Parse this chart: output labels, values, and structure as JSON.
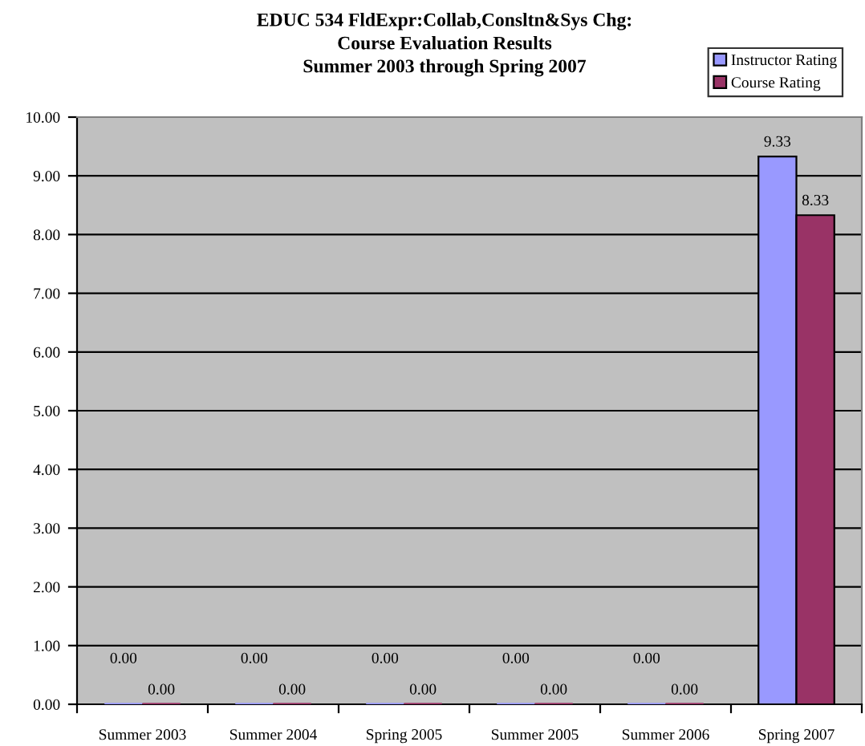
{
  "chart_data": {
    "type": "bar",
    "title": "EDUC 534 FldExpr:Collab,Consltn&Sys Chg:\nCourse Evaluation Results\nSummer 2003 through Spring 2007",
    "categories": [
      "Summer 2003",
      "Summer 2004",
      "Spring 2005",
      "Summer 2005",
      "Summer 2006",
      "Spring 2007"
    ],
    "series": [
      {
        "name": "Instructor Rating",
        "color": "#9999ff",
        "values": [
          0,
          0,
          0,
          0,
          0,
          9.33
        ],
        "value_labels": [
          "0.00",
          "0.00",
          "0.00",
          "0.00",
          "0.00",
          "9.33"
        ]
      },
      {
        "name": "Course Rating",
        "color": "#993366",
        "values": [
          0,
          0,
          0,
          0,
          0,
          8.33
        ],
        "value_labels": [
          "0.00",
          "0.00",
          "0.00",
          "0.00",
          "0.00",
          "8.33"
        ]
      }
    ],
    "ylim": [
      0,
      10
    ],
    "yticks": [
      {
        "value": 0,
        "label": "0.00"
      },
      {
        "value": 1,
        "label": "1.00"
      },
      {
        "value": 2,
        "label": "2.00"
      },
      {
        "value": 3,
        "label": "3.00"
      },
      {
        "value": 4,
        "label": "4.00"
      },
      {
        "value": 5,
        "label": "5.00"
      },
      {
        "value": 6,
        "label": "6.00"
      },
      {
        "value": 7,
        "label": "7.00"
      },
      {
        "value": 8,
        "label": "8.00"
      },
      {
        "value": 9,
        "label": "9.00"
      },
      {
        "value": 10,
        "label": "10.00"
      }
    ],
    "grid": "y",
    "legend": "top right"
  }
}
